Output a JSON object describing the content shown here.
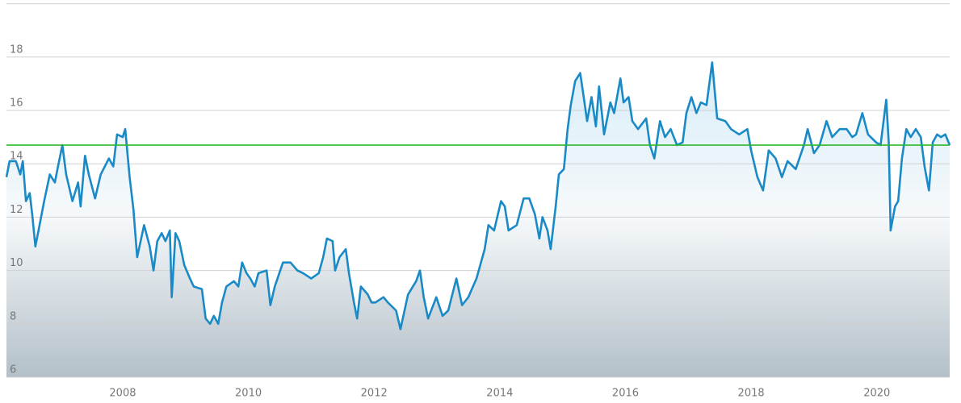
{
  "chart_data": {
    "type": "line",
    "x": [
      2006.15,
      2006.2,
      2006.3,
      2006.37,
      2006.41,
      2006.46,
      2006.52,
      2006.56,
      2006.61,
      2006.66,
      2006.75,
      2006.84,
      2006.92,
      2006.97,
      2007.04,
      2007.1,
      2007.2,
      2007.29,
      2007.33,
      2007.4,
      2007.46,
      2007.56,
      2007.65,
      2007.78,
      2007.85,
      2007.91,
      2008.0,
      2008.04,
      2008.11,
      2008.17,
      2008.23,
      2008.34,
      2008.43,
      2008.49,
      2008.55,
      2008.62,
      2008.68,
      2008.75,
      2008.78,
      2008.84,
      2008.9,
      2008.98,
      2009.07,
      2009.13,
      2009.26,
      2009.32,
      2009.39,
      2009.45,
      2009.52,
      2009.58,
      2009.65,
      2009.77,
      2009.84,
      2009.9,
      2009.97,
      2010.03,
      2010.1,
      2010.16,
      2010.29,
      2010.35,
      2010.42,
      2010.55,
      2010.67,
      2010.78,
      2010.87,
      2011.0,
      2011.12,
      2011.19,
      2011.25,
      2011.34,
      2011.38,
      2011.45,
      2011.55,
      2011.6,
      2011.68,
      2011.73,
      2011.79,
      2011.9,
      2011.96,
      2012.02,
      2012.15,
      2012.22,
      2012.35,
      2012.42,
      2012.54,
      2012.67,
      2012.73,
      2012.79,
      2012.86,
      2012.99,
      2013.09,
      2013.18,
      2013.31,
      2013.4,
      2013.5,
      2013.63,
      2013.76,
      2013.82,
      2013.91,
      2014.02,
      2014.08,
      2014.14,
      2014.27,
      2014.38,
      2014.47,
      2014.56,
      2014.63,
      2014.68,
      2014.76,
      2014.81,
      2014.89,
      2014.94,
      2015.02,
      2015.08,
      2015.13,
      2015.2,
      2015.28,
      2015.33,
      2015.39,
      2015.46,
      2015.53,
      2015.58,
      2015.66,
      2015.76,
      2015.82,
      2015.92,
      2015.97,
      2016.05,
      2016.11,
      2016.2,
      2016.33,
      2016.39,
      2016.46,
      2016.55,
      2016.63,
      2016.72,
      2016.82,
      2016.91,
      2016.97,
      2017.05,
      2017.13,
      2017.2,
      2017.29,
      2017.38,
      2017.46,
      2017.59,
      2017.68,
      2017.81,
      2017.94,
      2018.0,
      2018.1,
      2018.19,
      2018.28,
      2018.39,
      2018.49,
      2018.58,
      2018.71,
      2018.84,
      2018.9,
      2019.0,
      2019.09,
      2019.2,
      2019.29,
      2019.41,
      2019.52,
      2019.61,
      2019.67,
      2019.77,
      2019.86,
      2019.99,
      2020.06,
      2020.15,
      2020.19,
      2020.22,
      2020.29,
      2020.34,
      2020.4,
      2020.47,
      2020.54,
      2020.62,
      2020.7,
      2020.76,
      2020.83,
      2020.89,
      2020.96,
      2021.02,
      2021.09,
      2021.16
    ],
    "series": [
      {
        "color": "#1a8ac6",
        "values": [
          13.5,
          14.1,
          14.1,
          13.6,
          14.1,
          12.6,
          12.9,
          12.1,
          10.9,
          11.5,
          12.6,
          13.6,
          13.3,
          13.9,
          14.7,
          13.6,
          12.6,
          13.3,
          12.4,
          14.3,
          13.6,
          12.7,
          13.6,
          14.2,
          13.9,
          15.1,
          15.0,
          15.3,
          13.5,
          12.3,
          10.5,
          11.7,
          10.9,
          10.0,
          11.1,
          11.4,
          11.1,
          11.5,
          9.0,
          11.4,
          11.1,
          10.2,
          9.7,
          9.4,
          9.3,
          8.2,
          8.0,
          8.3,
          8.0,
          8.8,
          9.4,
          9.6,
          9.4,
          10.3,
          9.9,
          9.7,
          9.4,
          9.9,
          10.0,
          8.7,
          9.4,
          10.3,
          10.3,
          10.0,
          9.9,
          9.7,
          9.9,
          10.5,
          11.2,
          11.1,
          10.0,
          10.5,
          10.8,
          9.9,
          8.8,
          8.2,
          9.4,
          9.1,
          8.8,
          8.8,
          9.0,
          8.8,
          8.5,
          7.8,
          9.1,
          9.6,
          10.0,
          9.0,
          8.2,
          9.0,
          8.3,
          8.5,
          9.7,
          8.7,
          9.0,
          9.7,
          10.8,
          11.7,
          11.5,
          12.6,
          12.4,
          11.5,
          11.7,
          12.7,
          12.7,
          12.1,
          11.2,
          12.0,
          11.5,
          10.8,
          12.4,
          13.6,
          13.8,
          15.3,
          16.2,
          17.1,
          17.4,
          16.6,
          15.6,
          16.5,
          15.4,
          16.9,
          15.1,
          16.3,
          15.9,
          17.2,
          16.3,
          16.5,
          15.6,
          15.3,
          15.7,
          14.7,
          14.2,
          15.6,
          15.0,
          15.3,
          14.7,
          14.8,
          15.9,
          16.5,
          15.9,
          16.3,
          16.2,
          17.8,
          15.7,
          15.6,
          15.3,
          15.1,
          15.3,
          14.5,
          13.5,
          13.0,
          14.5,
          14.2,
          13.5,
          14.1,
          13.8,
          14.7,
          15.3,
          14.4,
          14.7,
          15.6,
          15.0,
          15.3,
          15.3,
          15.0,
          15.1,
          15.9,
          15.1,
          14.8,
          14.7,
          16.4,
          14.8,
          11.5,
          12.4,
          12.6,
          14.2,
          15.3,
          15.0,
          15.3,
          15.0,
          13.9,
          13.0,
          14.8,
          15.1,
          15.0,
          15.1,
          14.7
        ]
      }
    ],
    "reference_line": {
      "value": 14.7,
      "color": "#2db82d"
    },
    "xlim": [
      2006.15,
      2021.16
    ],
    "xticks": [
      2008,
      2010,
      2012,
      2014,
      2016,
      2018,
      2020
    ],
    "ylim": [
      6,
      20
    ],
    "yticks": [
      6,
      8,
      10,
      12,
      14,
      16,
      18
    ],
    "grid": true
  }
}
